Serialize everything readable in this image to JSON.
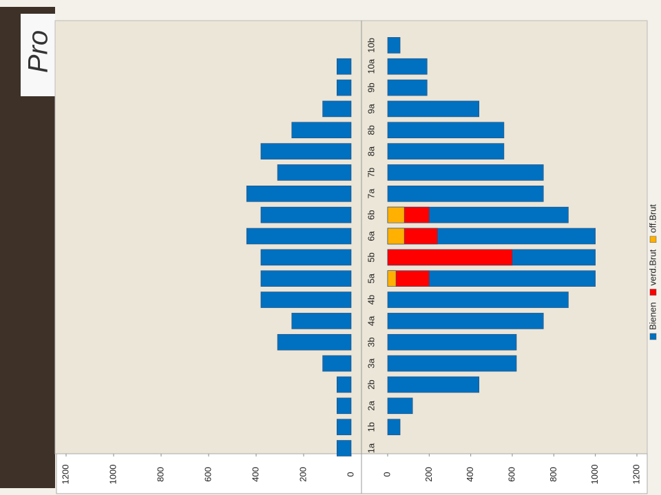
{
  "photo_text": "Pro",
  "chart_data": [
    {
      "type": "bar",
      "orientation": "horizontal",
      "values": [
        60,
        60,
        60,
        60,
        120,
        310,
        250,
        380,
        380,
        380,
        440,
        380,
        440,
        310,
        380,
        250,
        120,
        60,
        60,
        0
      ],
      "color": "#0070c0",
      "xlim": [
        1200,
        0
      ],
      "xticks": [
        1200,
        1000,
        800,
        600,
        400,
        200,
        0
      ]
    },
    {
      "type": "bar",
      "orientation": "horizontal",
      "categories": [
        "1a",
        "1b",
        "2a",
        "2b",
        "3a",
        "3b",
        "4a",
        "4b",
        "5a",
        "5b",
        "6a",
        "6b",
        "7a",
        "7b",
        "8a",
        "8b",
        "9a",
        "9b",
        "10a",
        "10b"
      ],
      "series": [
        {
          "name": "Bienen",
          "color": "#0070c0",
          "values": [
            0,
            60,
            120,
            440,
            620,
            620,
            750,
            870,
            1000,
            1000,
            1000,
            870,
            750,
            750,
            560,
            560,
            440,
            190,
            190,
            60
          ]
        },
        {
          "name": "verd.Brut",
          "color": "#ff0000",
          "values": [
            0,
            0,
            0,
            0,
            0,
            0,
            0,
            0,
            200,
            600,
            240,
            200,
            0,
            0,
            0,
            0,
            0,
            0,
            0,
            0
          ]
        },
        {
          "name": "off.Brut",
          "color": "#ffb000",
          "values": [
            0,
            0,
            0,
            0,
            0,
            0,
            0,
            0,
            40,
            0,
            80,
            80,
            0,
            0,
            0,
            0,
            0,
            0,
            0,
            0
          ]
        }
      ],
      "xlim": [
        0,
        1200
      ],
      "xticks": [
        0,
        200,
        400,
        600,
        800,
        1000,
        1200
      ],
      "legend": "right"
    }
  ]
}
